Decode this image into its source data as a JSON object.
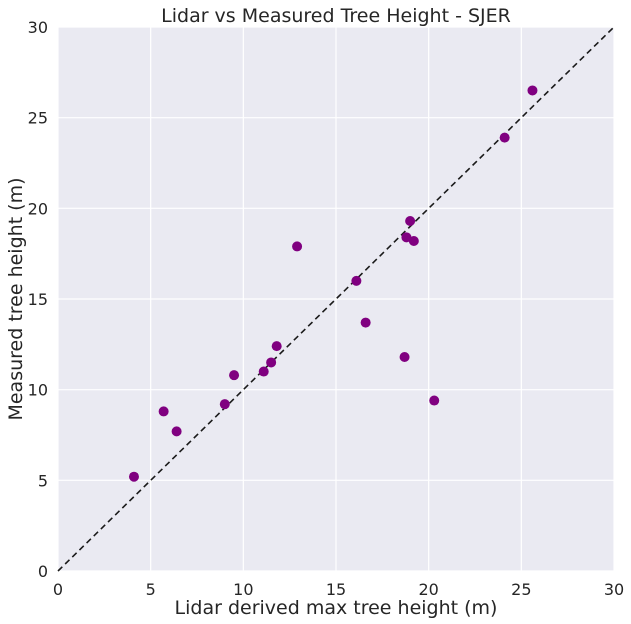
{
  "chart_data": {
    "type": "scatter",
    "title": "Lidar vs Measured Tree Height - SJER",
    "xlabel": "Lidar derived max tree height (m)",
    "ylabel": "Measured tree height (m)",
    "xlim": [
      0,
      30
    ],
    "ylim": [
      0,
      30
    ],
    "xticks": [
      0,
      5,
      10,
      15,
      20,
      25,
      30
    ],
    "yticks": [
      0,
      5,
      10,
      15,
      20,
      25,
      30
    ],
    "xtick_labels": [
      "0",
      "5",
      "10",
      "15",
      "20",
      "25",
      "30"
    ],
    "ytick_labels": [
      "0",
      "5",
      "10",
      "15",
      "20",
      "25",
      "30"
    ],
    "grid": true,
    "background": "#eaeaf2",
    "point_color": "#800080",
    "reference_line": {
      "style": "dashed",
      "color": "#1a1a1a",
      "from": [
        0,
        0
      ],
      "to": [
        30,
        30
      ]
    },
    "series": [
      {
        "x": [
          4.1,
          5.7,
          6.4,
          9.0,
          9.5,
          11.1,
          11.5,
          11.8,
          12.9,
          16.1,
          16.6,
          18.7,
          18.8,
          19.0,
          19.2,
          20.3,
          24.1,
          25.6
        ],
        "y": [
          5.2,
          8.8,
          7.7,
          9.2,
          10.8,
          11.0,
          11.5,
          12.4,
          17.9,
          16.0,
          13.7,
          11.8,
          18.4,
          19.3,
          18.2,
          9.4,
          23.9,
          26.5
        ]
      }
    ]
  }
}
